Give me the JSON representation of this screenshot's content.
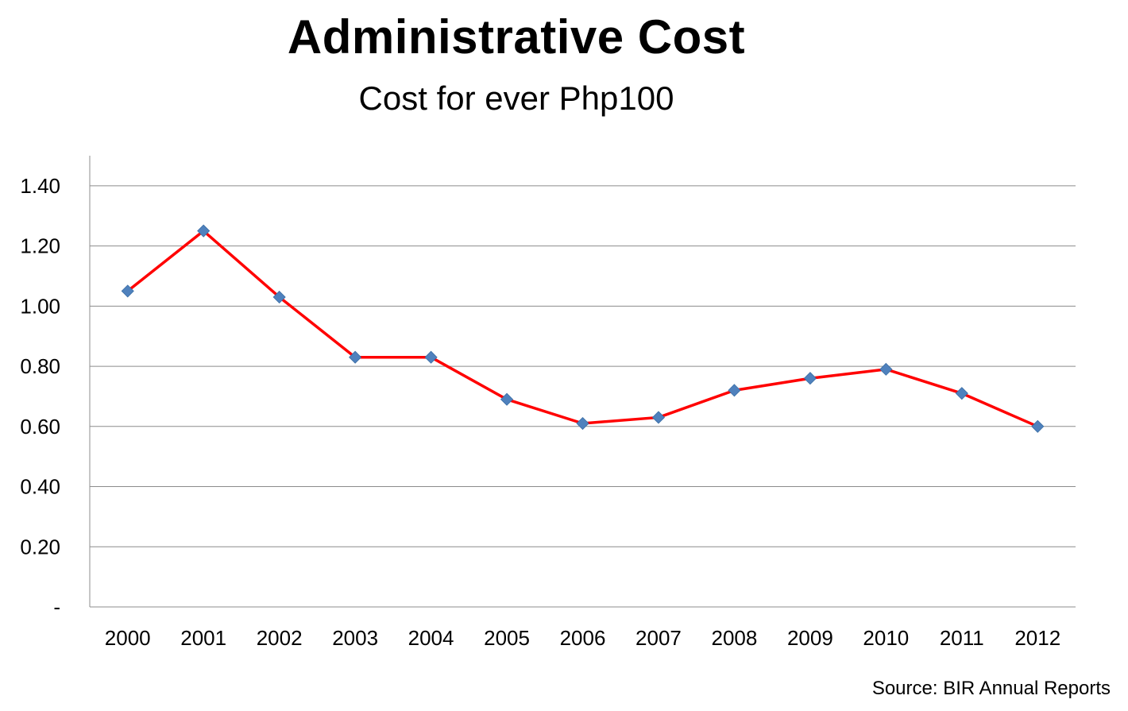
{
  "chart_data": {
    "type": "line",
    "title": "Administrative Cost",
    "subtitle": "Cost for ever Php100",
    "source": "Source: BIR Annual Reports",
    "categories": [
      "2000",
      "2001",
      "2002",
      "2003",
      "2004",
      "2005",
      "2006",
      "2007",
      "2008",
      "2009",
      "2010",
      "2011",
      "2012"
    ],
    "series": [
      {
        "values": [
          1.05,
          1.25,
          1.03,
          0.83,
          0.83,
          0.69,
          0.61,
          0.63,
          0.72,
          0.76,
          0.79,
          0.71,
          0.6
        ],
        "line_color": "#ff0000",
        "marker_color": "#4f81bd",
        "marker": "diamond"
      }
    ],
    "yticks": [
      "-",
      "0.20",
      "0.40",
      "0.60",
      "0.80",
      "1.00",
      "1.20",
      "1.40"
    ],
    "ylim": [
      0,
      1.5
    ],
    "grid": true,
    "legend": "none"
  }
}
